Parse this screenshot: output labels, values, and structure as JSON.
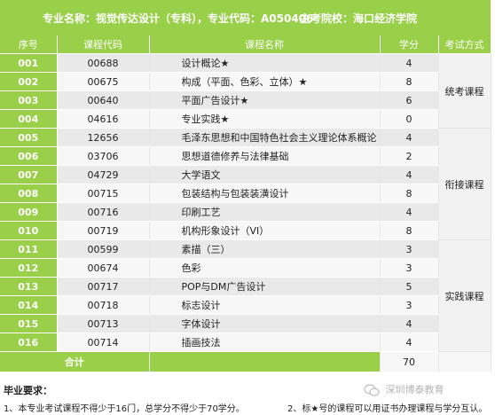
{
  "header": {
    "major": "专业名称：视觉传达设计（专科），专业代码：A050406",
    "school": "主考院校：海口经济学院"
  },
  "columns": [
    "序号",
    "课程代码",
    "课程名称",
    "学分",
    "考试方式"
  ],
  "rows": [
    {
      "no": "001",
      "code": "00688",
      "name": "设计概论★",
      "credit": "4"
    },
    {
      "no": "002",
      "code": "00675",
      "name": "构成（平面、色彩、立体）★",
      "credit": "8"
    },
    {
      "no": "003",
      "code": "00640",
      "name": "平面广告设计★",
      "credit": "6"
    },
    {
      "no": "004",
      "code": "04616",
      "name": "专业实践★",
      "credit": "0"
    },
    {
      "no": "005",
      "code": "12656",
      "name": "毛泽东思想和中国特色社会主义理论体系概论",
      "credit": "4"
    },
    {
      "no": "006",
      "code": "03706",
      "name": "思想道德修养与法律基础",
      "credit": "2"
    },
    {
      "no": "007",
      "code": "04729",
      "name": "大学语文",
      "credit": "4"
    },
    {
      "no": "008",
      "code": "00715",
      "name": "包装结构与包装装潢设计",
      "credit": "8"
    },
    {
      "no": "009",
      "code": "00716",
      "name": "印刷工艺",
      "credit": "4"
    },
    {
      "no": "010",
      "code": "00719",
      "name": "机构形象设计（VI）",
      "credit": "8"
    },
    {
      "no": "011",
      "code": "00599",
      "name": "素描（三）",
      "credit": "3"
    },
    {
      "no": "012",
      "code": "00674",
      "name": "色彩",
      "credit": "3"
    },
    {
      "no": "013",
      "code": "00717",
      "name": "POP与DM广告设计",
      "credit": "5"
    },
    {
      "no": "014",
      "code": "00718",
      "name": "标志设计",
      "credit": "3"
    },
    {
      "no": "015",
      "code": "00713",
      "name": "字体设计",
      "credit": "4"
    },
    {
      "no": "016",
      "code": "00714",
      "name": "插画技法",
      "credit": "4"
    }
  ],
  "groups": [
    "统考课程",
    "衔接课程",
    "实践课程"
  ],
  "total": {
    "label": "合计",
    "value": "70"
  },
  "requirements": {
    "title": "毕业要求：",
    "item1": "1、本专业考试课程不得少于16门，总学分不得少于70学分。",
    "item2": "2、标★号的课程可以用证书办理课程与学分互认。"
  },
  "watermark": "深圳博泰教育",
  "colors": {
    "accent": "#99cf49",
    "row_dark": "#e9e9e9",
    "row_light": "#f7f7f7"
  }
}
